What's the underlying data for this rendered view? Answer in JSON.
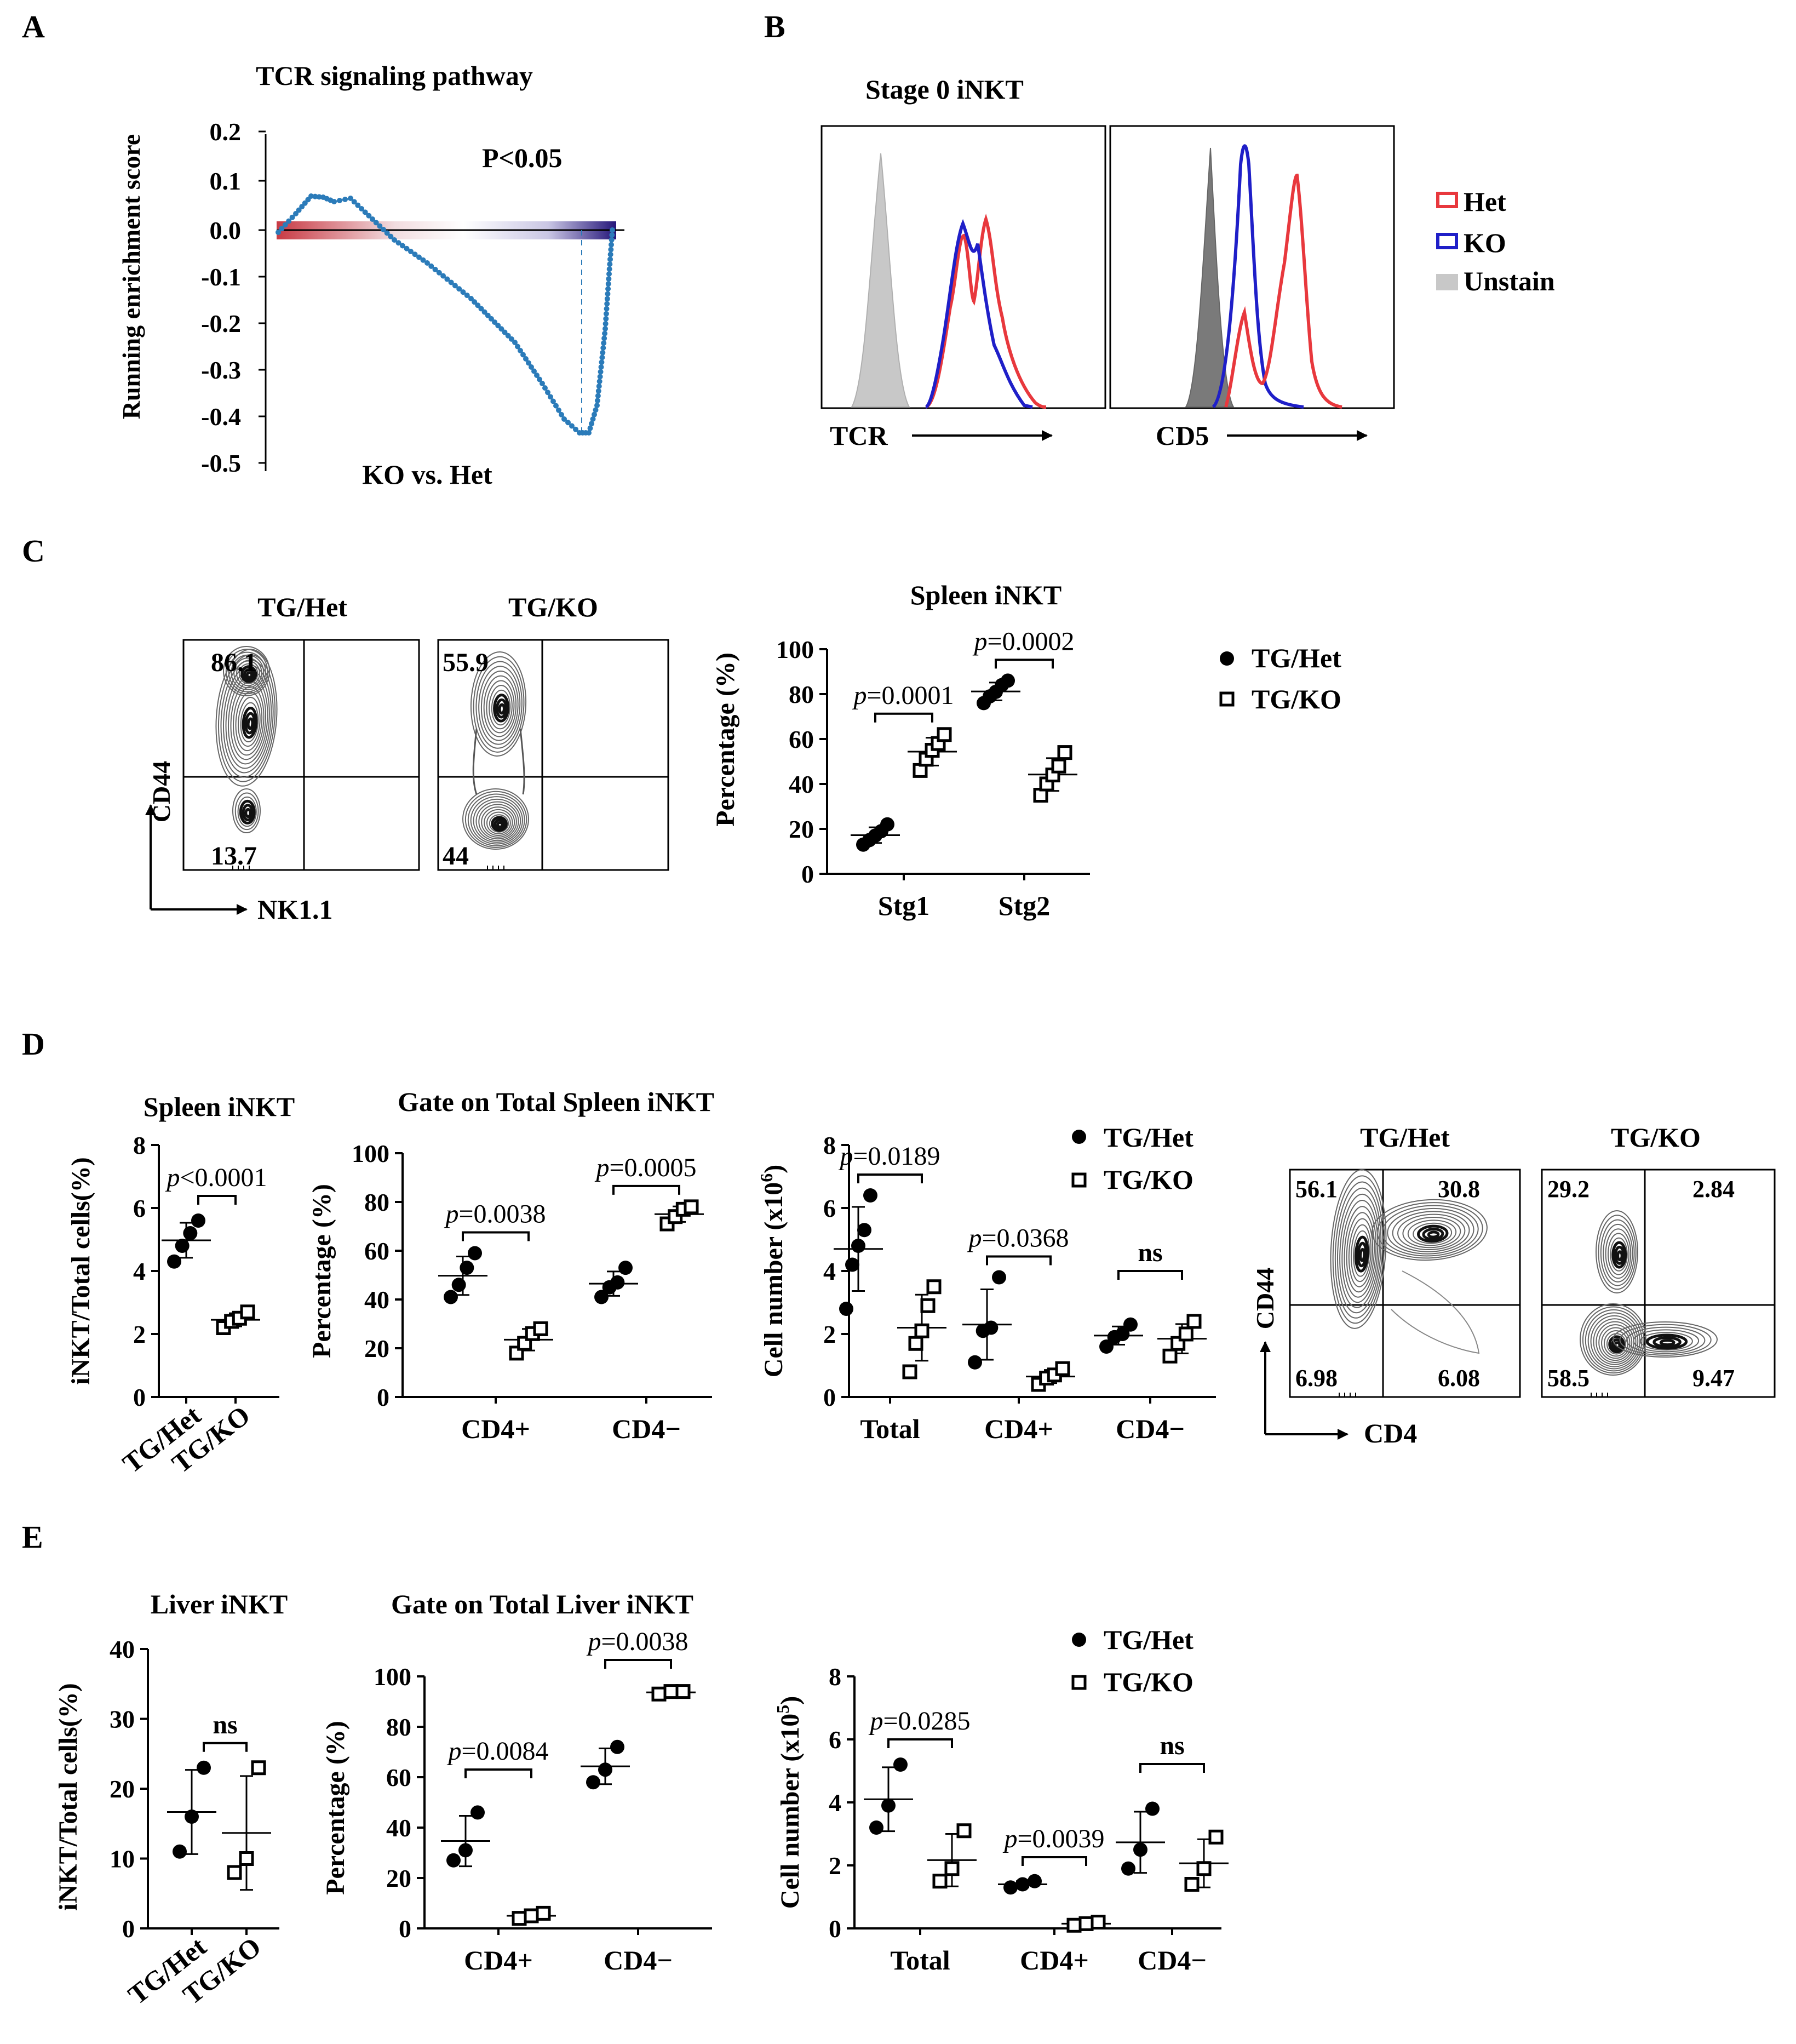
{
  "colors": {
    "het": "#e8383d",
    "ko": "#1f1fc8",
    "unstain": "#c8c8c8",
    "gsea_points": "#2b7bb9",
    "black": "#000000"
  },
  "panel_a": {
    "letter": "A",
    "title": "TCR signaling pathway",
    "ylabel": "Running enrichment score",
    "pvalue": "P<0.05",
    "xlabel": "KO vs. Het",
    "yticks": [
      "0.2",
      "0.1",
      "0.0",
      "-0.1",
      "-0.2",
      "-0.3",
      "-0.4",
      "-0.5"
    ]
  },
  "panel_b": {
    "letter": "B",
    "title": "Stage 0 iNKT",
    "axis_tcr": "TCR",
    "axis_cd5": "CD5",
    "legend": [
      "Het",
      "KO",
      "Unstain"
    ]
  },
  "panel_c": {
    "letter": "C",
    "flow": [
      {
        "label": "TG/Het",
        "top": "86.1",
        "bottom": "13.7"
      },
      {
        "label": "TG/KO",
        "top": "55.9",
        "bottom": "44"
      }
    ],
    "flow_y": "CD44",
    "flow_x": "NK1.1",
    "title": "Spleen iNKT",
    "ylabel": "Percentage (%)",
    "legend": [
      "TG/Het",
      "TG/KO"
    ],
    "chart_data": {
      "type": "scatter",
      "title": "Spleen iNKT",
      "ylabel": "Percentage (%)",
      "ylim": [
        0,
        100
      ],
      "yticks": [
        "100",
        "80",
        "60",
        "40",
        "20",
        "0"
      ],
      "categories": [
        "Stg1",
        "Stg2"
      ],
      "pvalues": [
        "p=0.0001",
        "p=0.0002"
      ],
      "series": [
        {
          "name": "TG/Het",
          "groups": [
            [
              13,
              15,
              17,
              19,
              22
            ],
            [
              76,
              79,
              81,
              84,
              86
            ]
          ]
        },
        {
          "name": "TG/KO",
          "groups": [
            [
              46,
              51,
              55,
              58,
              62
            ],
            [
              35,
              40,
              44,
              48,
              54
            ]
          ]
        }
      ]
    }
  },
  "panel_d": {
    "letter": "D",
    "chart1": {
      "title": "Spleen iNKT",
      "ylabel": "iNKT/Total cells(%)",
      "pvalue": "p<0.0001",
      "yticks": [
        "8",
        "6",
        "4",
        "2",
        "0"
      ],
      "xlabels": [
        "TG/Het",
        "TG/KO"
      ],
      "chart_data": {
        "type": "scatter",
        "ylim": [
          0,
          8
        ],
        "categories": [
          "TG/Het",
          "TG/KO"
        ],
        "values": [
          [
            4.3,
            4.8,
            5.2,
            5.6
          ],
          [
            2.2,
            2.4,
            2.5,
            2.7
          ]
        ]
      }
    },
    "chart2": {
      "title": "Gate on Total Spleen iNKT",
      "ylabel": "Percentage (%)",
      "yticks": [
        "100",
        "80",
        "60",
        "40",
        "20",
        "0"
      ],
      "categories": [
        "CD4+",
        "CD4−"
      ],
      "pvalues": [
        "p=0.0038",
        "p=0.0005"
      ],
      "chart_data": {
        "type": "scatter",
        "ylim": [
          0,
          100
        ],
        "series": [
          {
            "name": "TG/Het",
            "groups": [
              [
                41,
                46,
                53,
                59
              ],
              [
                41,
                45,
                47,
                53
              ]
            ]
          },
          {
            "name": "TG/KO",
            "groups": [
              [
                18,
                22,
                26,
                28
              ],
              [
                71,
                74,
                77,
                78
              ]
            ]
          }
        ]
      }
    },
    "chart3": {
      "ylabel": "Cell number (x10",
      "ylabel_sup": "6",
      "ylabel_tail": ")",
      "yticks": [
        "8",
        "6",
        "4",
        "2",
        "0"
      ],
      "categories": [
        "Total",
        "CD4+",
        "CD4−"
      ],
      "pvalues": [
        "p=0.0189",
        "p=0.0368",
        "ns"
      ],
      "legend": [
        "TG/Het",
        "TG/KO"
      ],
      "chart_data": {
        "type": "scatter",
        "ylim": [
          0,
          8
        ],
        "series": [
          {
            "name": "TG/Het",
            "groups": [
              [
                2.8,
                4.2,
                4.8,
                5.3,
                6.4
              ],
              [
                1.1,
                2.1,
                2.2,
                3.8
              ],
              [
                1.6,
                1.9,
                2.0,
                2.3
              ]
            ]
          },
          {
            "name": "TG/KO",
            "groups": [
              [
                0.8,
                1.7,
                2.1,
                2.9,
                3.5
              ],
              [
                0.4,
                0.6,
                0.7,
                0.9
              ],
              [
                1.3,
                1.7,
                2.0,
                2.4
              ]
            ]
          }
        ]
      }
    },
    "flow": [
      {
        "label": "TG/Het",
        "ul": "56.1",
        "ur": "30.8",
        "ll": "6.98",
        "lr": "6.08"
      },
      {
        "label": "TG/KO",
        "ul": "29.2",
        "ur": "2.84",
        "ll": "58.5",
        "lr": "9.47"
      }
    ],
    "flow_y": "CD44",
    "flow_x": "CD4"
  },
  "panel_e": {
    "letter": "E",
    "chart1": {
      "title": "Liver iNKT",
      "ylabel": "iNKT/Total cells(%)",
      "pvalue": "ns",
      "yticks": [
        "40",
        "30",
        "20",
        "10",
        "0"
      ],
      "xlabels": [
        "TG/Het",
        "TG/KO"
      ],
      "chart_data": {
        "type": "scatter",
        "ylim": [
          0,
          40
        ],
        "categories": [
          "TG/Het",
          "TG/KO"
        ],
        "values": [
          [
            11,
            16,
            23
          ],
          [
            8,
            10,
            23
          ]
        ]
      }
    },
    "chart2": {
      "title": "Gate on Total Liver iNKT",
      "ylabel": "Percentage (%)",
      "yticks": [
        "100",
        "80",
        "60",
        "40",
        "20",
        "0"
      ],
      "categories": [
        "CD4+",
        "CD4−"
      ],
      "pvalues": [
        "p=0.0084",
        "p=0.0038"
      ],
      "chart_data": {
        "type": "scatter",
        "ylim": [
          0,
          100
        ],
        "series": [
          {
            "name": "TG/Het",
            "groups": [
              [
                27,
                31,
                46
              ],
              [
                58,
                63,
                72
              ]
            ]
          },
          {
            "name": "TG/KO",
            "groups": [
              [
                4,
                5,
                6
              ],
              [
                93,
                94,
                94
              ]
            ]
          }
        ]
      }
    },
    "chart3": {
      "ylabel": "Cell number (x10",
      "ylabel_sup": "5",
      "ylabel_tail": ")",
      "yticks": [
        "8",
        "6",
        "4",
        "2",
        "0"
      ],
      "categories": [
        "Total",
        "CD4+",
        "CD4−"
      ],
      "pvalues": [
        "p=0.0285",
        "p=0.0039",
        "ns"
      ],
      "legend": [
        "TG/Het",
        "TG/KO"
      ],
      "chart_data": {
        "type": "scatter",
        "ylim": [
          0,
          8
        ],
        "series": [
          {
            "name": "TG/Het",
            "groups": [
              [
                3.2,
                3.9,
                5.2
              ],
              [
                1.3,
                1.4,
                1.5
              ],
              [
                1.9,
                2.5,
                3.8
              ]
            ]
          },
          {
            "name": "TG/KO",
            "groups": [
              [
                1.5,
                1.9,
                3.1
              ],
              [
                0.1,
                0.15,
                0.2
              ],
              [
                1.4,
                1.9,
                2.9
              ]
            ]
          }
        ]
      }
    }
  }
}
